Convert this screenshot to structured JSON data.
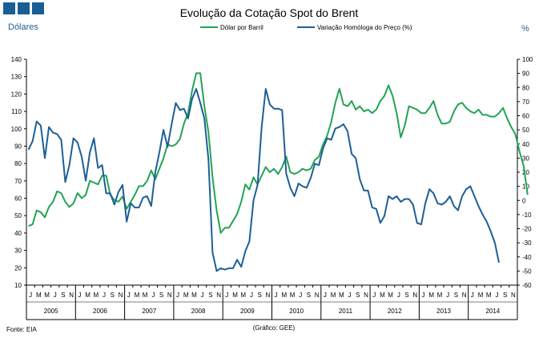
{
  "chart_data": {
    "type": "line",
    "title": "Evolução da Cotação Spot do Brent",
    "ylabel_left": "Dólares",
    "ylabel_right": "%",
    "source": "Fonte: EIA",
    "credit": "(Gráfico: GEE)",
    "ylim_left": [
      10,
      140
    ],
    "ylim_right": [
      -60,
      100
    ],
    "yticks_left": [
      "10",
      "20",
      "30",
      "40",
      "50",
      "60",
      "70",
      "80",
      "90",
      "100",
      "110",
      "120",
      "130",
      "140"
    ],
    "yticks_right": [
      "-60",
      "-50",
      "-40",
      "-30",
      "-20",
      "-10",
      "0",
      "10",
      "20",
      "30",
      "40",
      "50",
      "60",
      "70",
      "80",
      "90",
      "100"
    ],
    "month_ticks": [
      "J",
      "M",
      "M",
      "J",
      "S",
      "N"
    ],
    "years": [
      "2005",
      "2006",
      "2007",
      "2008",
      "2009",
      "2010",
      "2011",
      "2012",
      "2013",
      "2014"
    ],
    "series": [
      {
        "name": "Dólar por Barril",
        "axis": "left",
        "color": "#22a454",
        "values": [
          44,
          45,
          53,
          52,
          49,
          55,
          58,
          64,
          63,
          58,
          55,
          57,
          63,
          60,
          62,
          70,
          69,
          68,
          73,
          73,
          62,
          59,
          58,
          61,
          54,
          58,
          62,
          67,
          67,
          70,
          76,
          71,
          77,
          83,
          91,
          90,
          91,
          94,
          103,
          109,
          122,
          132,
          132,
          113,
          98,
          72,
          53,
          40,
          43,
          43,
          47,
          51,
          58,
          68,
          65,
          72,
          68,
          73,
          78,
          75,
          77,
          74,
          78,
          84,
          75,
          74,
          75,
          77,
          76,
          77,
          82,
          84,
          91,
          96,
          104,
          115,
          123,
          114,
          113,
          116,
          111,
          113,
          110,
          111,
          109,
          111,
          116,
          119,
          125,
          119,
          109,
          95,
          102,
          113,
          112,
          111,
          109,
          109,
          112,
          116,
          108,
          103,
          103,
          104,
          110,
          114,
          115,
          112,
          110,
          109,
          111,
          108,
          108,
          107,
          107,
          109,
          112,
          106,
          101,
          97,
          87,
          79,
          62
        ]
      },
      {
        "name": "Variação Homóloga do Preço (%)",
        "axis": "right",
        "color": "#1d5f96",
        "values": [
          36,
          42,
          56,
          53,
          30,
          52,
          48,
          47,
          43,
          13,
          25,
          44,
          41,
          31,
          14,
          34,
          44,
          23,
          25,
          5,
          5,
          -3,
          6,
          11,
          -15,
          -2,
          -5,
          -5,
          2,
          3,
          -4,
          20,
          34,
          50,
          38,
          54,
          69,
          64,
          65,
          58,
          72,
          79,
          69,
          58,
          29,
          -37,
          -50,
          -48,
          -49,
          -48,
          -48,
          -42,
          -47,
          -36,
          -29,
          0,
          11,
          52,
          79,
          68,
          65,
          65,
          64,
          19,
          9,
          3,
          12,
          10,
          9,
          16,
          26,
          25,
          37,
          44,
          43,
          51,
          52,
          54,
          49,
          33,
          30,
          15,
          7,
          7,
          -5,
          -6,
          -16,
          -11,
          3,
          1,
          3,
          -1,
          1,
          1,
          -3,
          -16,
          -17,
          -2,
          8,
          5,
          -2,
          -3,
          -1,
          3,
          -4,
          -7,
          3,
          8,
          10,
          3,
          -4,
          -10,
          -15,
          -22,
          -30,
          -44
        ]
      }
    ]
  }
}
